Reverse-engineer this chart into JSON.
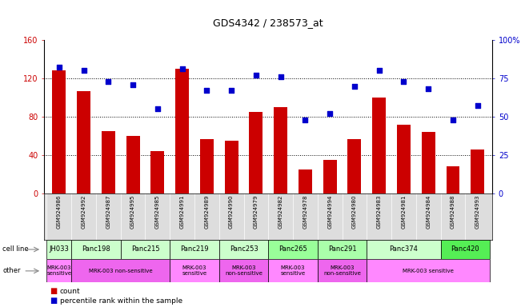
{
  "title": "GDS4342 / 238573_at",
  "samples": [
    "GSM924986",
    "GSM924992",
    "GSM924987",
    "GSM924995",
    "GSM924985",
    "GSM924991",
    "GSM924989",
    "GSM924990",
    "GSM924979",
    "GSM924982",
    "GSM924978",
    "GSM924994",
    "GSM924980",
    "GSM924983",
    "GSM924981",
    "GSM924984",
    "GSM924988",
    "GSM924993"
  ],
  "counts": [
    128,
    107,
    65,
    60,
    44,
    130,
    57,
    55,
    85,
    90,
    25,
    35,
    57,
    100,
    72,
    64,
    28,
    46
  ],
  "percentiles": [
    82,
    80,
    73,
    71,
    55,
    81,
    67,
    67,
    77,
    76,
    48,
    52,
    70,
    80,
    73,
    68,
    48,
    57
  ],
  "bar_color": "#cc0000",
  "dot_color": "#0000cc",
  "ylim_left": [
    0,
    160
  ],
  "ylim_right": [
    0,
    100
  ],
  "yticks_left": [
    0,
    40,
    80,
    120,
    160
  ],
  "yticks_right": [
    0,
    25,
    50,
    75,
    100
  ],
  "yticklabels_right": [
    "0",
    "25",
    "50",
    "75",
    "100%"
  ],
  "cell_lines": [
    {
      "name": "JH033",
      "start": 0,
      "end": 1,
      "color": "#ccffcc"
    },
    {
      "name": "Panc198",
      "start": 1,
      "end": 3,
      "color": "#ccffcc"
    },
    {
      "name": "Panc215",
      "start": 3,
      "end": 5,
      "color": "#ccffcc"
    },
    {
      "name": "Panc219",
      "start": 5,
      "end": 7,
      "color": "#ccffcc"
    },
    {
      "name": "Panc253",
      "start": 7,
      "end": 9,
      "color": "#ccffcc"
    },
    {
      "name": "Panc265",
      "start": 9,
      "end": 11,
      "color": "#99ff99"
    },
    {
      "name": "Panc291",
      "start": 11,
      "end": 13,
      "color": "#aaffaa"
    },
    {
      "name": "Panc374",
      "start": 13,
      "end": 16,
      "color": "#ccffcc"
    },
    {
      "name": "Panc420",
      "start": 16,
      "end": 18,
      "color": "#55ee55"
    }
  ],
  "other_groups": [
    {
      "name": "MRK-003\nsensitive",
      "start": 0,
      "end": 1,
      "color": "#ff88ff"
    },
    {
      "name": "MRK-003 non-sensitive",
      "start": 1,
      "end": 5,
      "color": "#ee66ee"
    },
    {
      "name": "MRK-003\nsensitive",
      "start": 5,
      "end": 7,
      "color": "#ff88ff"
    },
    {
      "name": "MRK-003\nnon-sensitive",
      "start": 7,
      "end": 9,
      "color": "#ee66ee"
    },
    {
      "name": "MRK-003\nsensitive",
      "start": 9,
      "end": 11,
      "color": "#ff88ff"
    },
    {
      "name": "MRK-003\nnon-sensitive",
      "start": 11,
      "end": 13,
      "color": "#ee66ee"
    },
    {
      "name": "MRK-003 sensitive",
      "start": 13,
      "end": 18,
      "color": "#ff88ff"
    }
  ],
  "gsm_bg_color": "#dddddd",
  "background_color": "#ffffff",
  "ylabel_left_color": "#cc0000",
  "ylabel_right_color": "#0000cc"
}
